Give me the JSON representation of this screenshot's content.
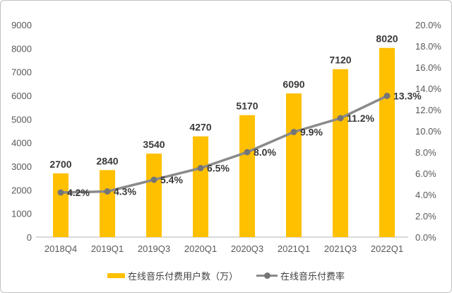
{
  "chart_data": {
    "type": "bar+line",
    "categories": [
      "2018Q4",
      "2019Q1",
      "2019Q3",
      "2020Q1",
      "2020Q3",
      "2021Q1",
      "2021Q3",
      "2022Q1"
    ],
    "series": [
      {
        "name": "在线音乐付费用户数（万）",
        "type": "bar",
        "axis": "left",
        "color": "#FFC000",
        "values": [
          2700,
          2840,
          3540,
          4270,
          5170,
          6090,
          7120,
          8020
        ],
        "labels": [
          "2700",
          "2840",
          "3540",
          "4270",
          "5170",
          "6090",
          "7120",
          "8020"
        ]
      },
      {
        "name": "在线音乐付费率",
        "type": "line",
        "axis": "right",
        "line_color": "#8a8a8a",
        "marker_color": "#757575",
        "values": [
          4.2,
          4.3,
          5.4,
          6.5,
          8.0,
          9.9,
          11.2,
          13.3
        ],
        "labels": [
          "4.2%",
          "4.3%",
          "5.4%",
          "6.5%",
          "8.0%",
          "9.9%",
          "11.2%",
          "13.3%"
        ]
      }
    ],
    "left_axis": {
      "min": 0,
      "max": 9000,
      "step": 1000,
      "tick_labels": [
        "0",
        "1000",
        "2000",
        "3000",
        "4000",
        "5000",
        "6000",
        "7000",
        "8000",
        "9000"
      ]
    },
    "right_axis": {
      "min": 0,
      "max": 20,
      "step": 2,
      "tick_labels": [
        "0.0%",
        "2.0%",
        "4.0%",
        "6.0%",
        "8.0%",
        "10.0%",
        "12.0%",
        "14.0%",
        "16.0%",
        "18.0%",
        "20.0%"
      ]
    },
    "axis_line_color": "#d9d9d9",
    "grid": false,
    "legend_position": "bottom",
    "legend": [
      {
        "label": "在线音乐付费用户数（万）",
        "swatch": "bar",
        "color": "#FFC000"
      },
      {
        "label": "在线音乐付费率",
        "swatch": "line-dot",
        "color": "#8a8a8a",
        "dot_color": "#757575"
      }
    ]
  }
}
